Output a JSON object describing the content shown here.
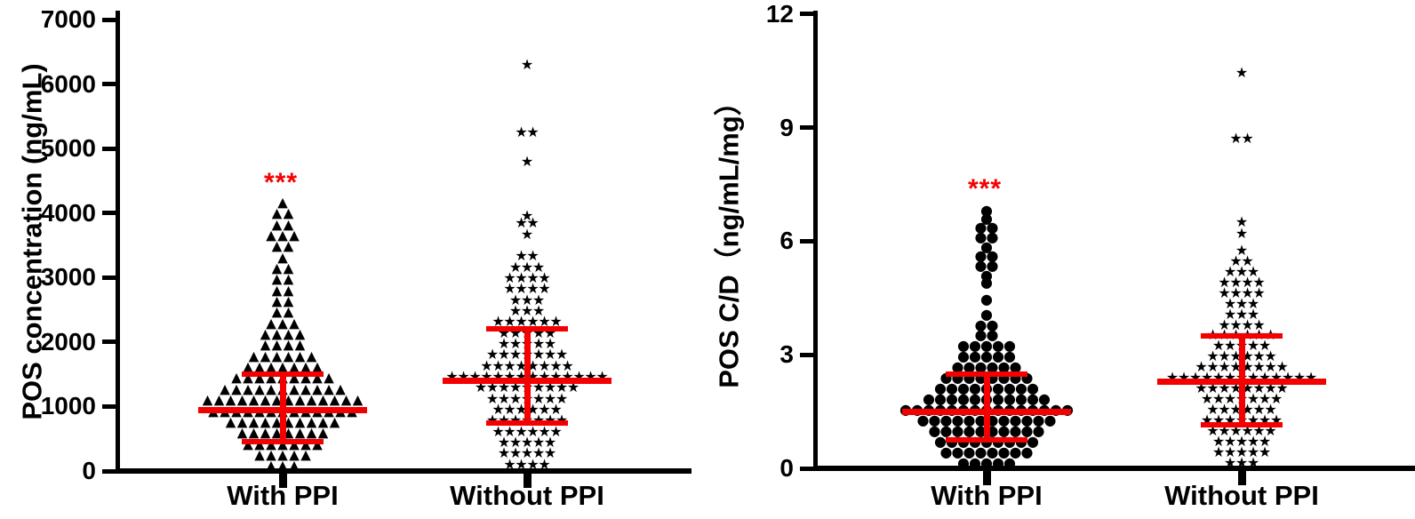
{
  "figure": {
    "background": "#ffffff",
    "marker_color": "#000000",
    "error_bar_color": "#f40000",
    "significance_color": "#f40000"
  },
  "chart_data": [
    {
      "type": "scatter",
      "variant": "beeswarm-dot-plot-with-median-iqr",
      "ylabel": "POS concentration (ng/mL)",
      "ylim": [
        0,
        7000
      ],
      "yticks": [
        0,
        1000,
        2000,
        3000,
        4000,
        5000,
        6000,
        7000
      ],
      "grid": false,
      "legend": "none",
      "categories": [
        "With PPI",
        "Without PPI"
      ],
      "significance": {
        "label": "***",
        "group_index": 0,
        "value": 4530
      },
      "groups": [
        {
          "name": "With PPI",
          "marker": "triangle",
          "summary": {
            "median": 950,
            "q1": 450,
            "q3": 1500
          },
          "points_value_count": [
            [
              4160,
              1
            ],
            [
              3990,
              2
            ],
            [
              3820,
              2
            ],
            [
              3650,
              3
            ],
            [
              3480,
              2
            ],
            [
              3310,
              1
            ],
            [
              3140,
              2
            ],
            [
              2970,
              2
            ],
            [
              2800,
              2
            ],
            [
              2630,
              2
            ],
            [
              2460,
              2
            ],
            [
              2290,
              3
            ],
            [
              2120,
              4
            ],
            [
              1950,
              4
            ],
            [
              1780,
              6
            ],
            [
              1610,
              7
            ],
            [
              1440,
              9
            ],
            [
              1270,
              11
            ],
            [
              1100,
              14
            ],
            [
              930,
              13
            ],
            [
              760,
              10
            ],
            [
              590,
              8
            ],
            [
              420,
              7
            ],
            [
              250,
              5
            ],
            [
              80,
              3
            ]
          ]
        },
        {
          "name": "Without PPI",
          "marker": "star",
          "summary": {
            "median": 1400,
            "q1": 750,
            "q3": 2200
          },
          "points_value_count": [
            [
              6300,
              1
            ],
            [
              5250,
              2
            ],
            [
              4800,
              1
            ],
            [
              3960,
              1
            ],
            [
              3840,
              2
            ],
            [
              3670,
              1
            ],
            [
              3330,
              2
            ],
            [
              3160,
              3
            ],
            [
              2990,
              4
            ],
            [
              2820,
              4
            ],
            [
              2650,
              3
            ],
            [
              2480,
              3
            ],
            [
              2310,
              6
            ],
            [
              2140,
              5
            ],
            [
              1970,
              5
            ],
            [
              1800,
              7
            ],
            [
              1630,
              8
            ],
            [
              1460,
              14
            ],
            [
              1290,
              9
            ],
            [
              1120,
              7
            ],
            [
              950,
              6
            ],
            [
              780,
              7
            ],
            [
              610,
              6
            ],
            [
              440,
              5
            ],
            [
              270,
              5
            ],
            [
              100,
              4
            ]
          ]
        }
      ]
    },
    {
      "type": "scatter",
      "variant": "beeswarm-dot-plot-with-median-iqr",
      "ylabel": "POS C/D（ng/mL/mg）",
      "ylim": [
        0,
        12
      ],
      "yticks": [
        0,
        3,
        6,
        9,
        12
      ],
      "grid": false,
      "legend": "none",
      "categories": [
        "With PPI",
        "Without PPI"
      ],
      "significance": {
        "label": "***",
        "group_index": 0,
        "value": 7.5
      },
      "groups": [
        {
          "name": "With PPI",
          "marker": "circle",
          "summary": {
            "median": 1.5,
            "q1": 0.75,
            "q3": 2.5
          },
          "points_value_count": [
            [
              6.8,
              1
            ],
            [
              6.6,
              1
            ],
            [
              6.35,
              2
            ],
            [
              6.1,
              2
            ],
            [
              5.85,
              1
            ],
            [
              5.6,
              2
            ],
            [
              5.35,
              2
            ],
            [
              5.1,
              1
            ],
            [
              4.9,
              1
            ],
            [
              4.45,
              1
            ],
            [
              4.07,
              1
            ],
            [
              3.79,
              2
            ],
            [
              3.51,
              2
            ],
            [
              3.23,
              5
            ],
            [
              2.95,
              5
            ],
            [
              2.67,
              6
            ],
            [
              2.39,
              8
            ],
            [
              2.11,
              9
            ],
            [
              1.83,
              11
            ],
            [
              1.55,
              15
            ],
            [
              1.27,
              12
            ],
            [
              0.99,
              10
            ],
            [
              0.71,
              9
            ],
            [
              0.43,
              8
            ],
            [
              0.15,
              5
            ]
          ]
        },
        {
          "name": "Without PPI",
          "marker": "star",
          "summary": {
            "median": 2.3,
            "q1": 1.15,
            "q3": 3.5
          },
          "points_value_count": [
            [
              10.45,
              1
            ],
            [
              8.7,
              2
            ],
            [
              6.5,
              1
            ],
            [
              6.2,
              1
            ],
            [
              5.75,
              1
            ],
            [
              5.47,
              2
            ],
            [
              5.19,
              3
            ],
            [
              4.91,
              4
            ],
            [
              4.63,
              4
            ],
            [
              4.35,
              3
            ],
            [
              4.07,
              3
            ],
            [
              3.79,
              4
            ],
            [
              3.51,
              6
            ],
            [
              3.23,
              5
            ],
            [
              2.95,
              6
            ],
            [
              2.67,
              8
            ],
            [
              2.39,
              13
            ],
            [
              2.11,
              8
            ],
            [
              1.83,
              7
            ],
            [
              1.55,
              6
            ],
            [
              1.27,
              7
            ],
            [
              0.99,
              6
            ],
            [
              0.71,
              5
            ],
            [
              0.43,
              5
            ],
            [
              0.15,
              3
            ]
          ]
        }
      ]
    }
  ]
}
